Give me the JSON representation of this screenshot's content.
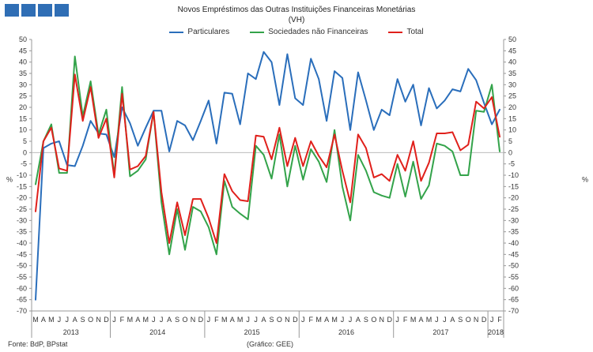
{
  "header": {
    "title": "Novos Empréstimos das Outras Instituições Financeiras Monetárias",
    "subtitle": "(VH)",
    "logo_colors": [
      "#2f6eb5",
      "#2f6eb5",
      "#2f6eb5",
      "#2f6eb5"
    ]
  },
  "footer": {
    "source": "Fonte: BdP, BPstat",
    "credit": "(Gráfico: GEE)"
  },
  "chart_data": {
    "type": "line",
    "y_unit_left": "%",
    "y_unit_right": "%",
    "ylim": [
      -70,
      50
    ],
    "y_ticks": [
      50,
      45,
      40,
      35,
      30,
      25,
      20,
      15,
      10,
      5,
      0,
      -5,
      -10,
      -15,
      -20,
      -25,
      -30,
      -35,
      -40,
      -45,
      -50,
      -55,
      -60,
      -65,
      -70
    ],
    "grid": false,
    "legend_position": "top-center",
    "month_labels": [
      "M",
      "A",
      "M",
      "J",
      "J",
      "A",
      "S",
      "O",
      "N",
      "D",
      "J",
      "F",
      "M",
      "A",
      "M",
      "J",
      "J",
      "A",
      "S",
      "O",
      "N",
      "D",
      "J",
      "F",
      "M",
      "A",
      "M",
      "J",
      "J",
      "A",
      "S",
      "O",
      "N",
      "D",
      "J",
      "F",
      "M",
      "A",
      "M",
      "J",
      "J",
      "A",
      "S",
      "O",
      "N",
      "D",
      "J",
      "F",
      "M",
      "A",
      "M",
      "J",
      "J",
      "A",
      "S",
      "O",
      "N",
      "D",
      "J",
      "F"
    ],
    "years": [
      {
        "label": "2013",
        "start": 0,
        "end": 9
      },
      {
        "label": "2014",
        "start": 10,
        "end": 21
      },
      {
        "label": "2015",
        "start": 22,
        "end": 33
      },
      {
        "label": "2016",
        "start": 34,
        "end": 45
      },
      {
        "label": "2017",
        "start": 46,
        "end": 57
      },
      {
        "label": "2018",
        "start": 58,
        "end": 59
      }
    ],
    "series": [
      {
        "name": "Particulares",
        "color": "#2a6ebb",
        "values": [
          -65,
          2,
          4,
          5,
          -5.5,
          -6,
          3,
          14,
          8.5,
          8,
          -2,
          20,
          13,
          3,
          11,
          18.5,
          18.5,
          0.5,
          14,
          12,
          5.5,
          14,
          23,
          4,
          26.5,
          26,
          12.5,
          35,
          32.5,
          44.5,
          40,
          21,
          43.5,
          24,
          21,
          41.5,
          32.5,
          14,
          36,
          33,
          10,
          35.5,
          23,
          10,
          19,
          16.5,
          32.5,
          22.5,
          30,
          12,
          28.5,
          19.5,
          23,
          28,
          27,
          37,
          32,
          22,
          12.5,
          19
        ]
      },
      {
        "name": "Sociedades não Financeiras",
        "color": "#33a34a",
        "values": [
          -14,
          5,
          12.5,
          -9,
          -9,
          42.5,
          16,
          31.5,
          8,
          19,
          -10,
          29,
          -10.5,
          -8,
          -3,
          18,
          -22,
          -45,
          -25,
          -43,
          -24,
          -26,
          -33,
          -45,
          -12.5,
          -24,
          -27,
          -29.5,
          3,
          -1,
          -11.5,
          8,
          -15,
          3,
          -12,
          1.5,
          -4,
          -13,
          10,
          -15,
          -30,
          -1,
          -8,
          -17.5,
          -19,
          -20,
          -5,
          -19.5,
          -4,
          -20.5,
          -14.5,
          4,
          3,
          0.5,
          -10,
          -10,
          18.5,
          18,
          30,
          0.5
        ]
      },
      {
        "name": "Total",
        "color": "#e0201b",
        "values": [
          -26,
          5,
          11,
          -7,
          -8,
          34.5,
          14,
          29,
          6.5,
          15,
          -11,
          26,
          -7.5,
          -6,
          -1.5,
          18,
          -17.5,
          -40,
          -22,
          -36.5,
          -20.5,
          -20.5,
          -29,
          -40,
          -9.5,
          -17,
          -21,
          -21.5,
          7.5,
          7,
          -3,
          11,
          -6,
          6.5,
          -6,
          5,
          -1.5,
          -6.5,
          8,
          -8,
          -22,
          8,
          2,
          -11,
          -9.5,
          -12.5,
          -1,
          -8,
          5,
          -12.5,
          -4.5,
          8.5,
          8.5,
          9,
          1,
          3.5,
          22.5,
          19.5,
          24.5,
          7
        ]
      }
    ]
  }
}
